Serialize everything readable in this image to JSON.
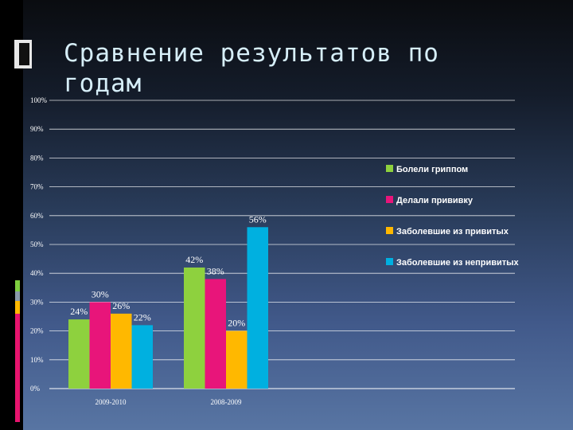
{
  "slide": {
    "title": "Сравнение результатов по годам"
  },
  "colors": {
    "background_top": "#0a0c10",
    "background_bottom": "#5875a3",
    "title": "#d6eef8",
    "deco_green": "#7fcf3f",
    "deco_gray": "#8a9aaa",
    "deco_pink": "#e8146e"
  },
  "chart_data": {
    "type": "bar",
    "title": "",
    "xlabel": "",
    "ylabel": "",
    "ylim": [
      0,
      100
    ],
    "yticks": [
      "0%",
      "10%",
      "20%",
      "30%",
      "40%",
      "50%",
      "60%",
      "70%",
      "80%",
      "90%",
      "100%"
    ],
    "grid": true,
    "legend_position": "right",
    "categories": [
      "2009-2010",
      "2008-2009"
    ],
    "series": [
      {
        "name": "Болели гриппом",
        "color": "#8ed13e",
        "values": [
          24,
          42
        ],
        "labels": [
          "24%",
          "42%"
        ]
      },
      {
        "name": "Делали прививку",
        "color": "#e8157a",
        "values": [
          30,
          38
        ],
        "labels": [
          "30%",
          "38%"
        ]
      },
      {
        "name": "Заболевшие из привитых",
        "color": "#ffb800",
        "values": [
          26,
          20
        ],
        "labels": [
          "26%",
          "20%"
        ]
      },
      {
        "name": "Заболевшие из непривитых",
        "color": "#00b0e0",
        "values": [
          22,
          56
        ],
        "labels": [
          "22%",
          "56%"
        ]
      }
    ]
  }
}
